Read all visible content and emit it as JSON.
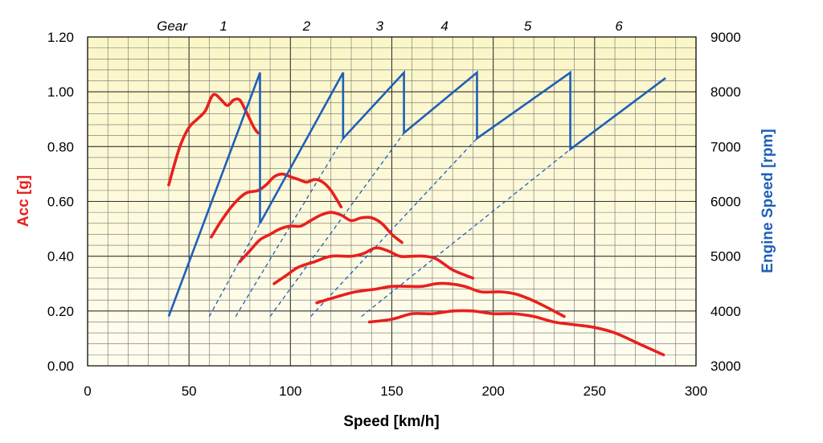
{
  "chart_data": {
    "type": "line",
    "xlabel": "Speed [km/h]",
    "ylabel_left": "Acc [g]",
    "ylabel_right": "Engine Speed [rpm]",
    "xlim": [
      0,
      300
    ],
    "ylim_left": [
      0,
      1.2
    ],
    "ylim_right": [
      3000,
      9000
    ],
    "x_ticks": [
      "0",
      "50",
      "100",
      "150",
      "200",
      "250",
      "300"
    ],
    "y_left_ticks": [
      "0.00",
      "0.20",
      "0.40",
      "0.60",
      "0.80",
      "1.00",
      "1.20"
    ],
    "y_right_ticks": [
      "3000",
      "4000",
      "5000",
      "6000",
      "7000",
      "8000",
      "9000"
    ],
    "grid": true,
    "colors": {
      "acceleration": "#e8201e",
      "engine_speed": "#1f5fb8",
      "background_top": "#fbf6c6",
      "background_bottom": "#fffdf0",
      "grid": "#6e6e6e",
      "left_axis_title": "#e8201e",
      "right_axis_title": "#1f5fb8"
    },
    "gear_header": {
      "title": "Gear",
      "labels": [
        {
          "text": "1",
          "x": 67
        },
        {
          "text": "2",
          "x": 108
        },
        {
          "text": "3",
          "x": 144
        },
        {
          "text": "4",
          "x": 176
        },
        {
          "text": "5",
          "x": 217
        },
        {
          "text": "6",
          "x": 262
        }
      ]
    },
    "acceleration_series": [
      {
        "gear": "1",
        "points": [
          [
            40,
            0.66
          ],
          [
            43,
            0.74
          ],
          [
            46,
            0.81
          ],
          [
            50,
            0.87
          ],
          [
            54,
            0.9
          ],
          [
            58,
            0.93
          ],
          [
            61,
            0.98
          ],
          [
            63,
            0.99
          ],
          [
            66,
            0.97
          ],
          [
            69,
            0.95
          ],
          [
            72,
            0.97
          ],
          [
            75,
            0.97
          ],
          [
            78,
            0.93
          ],
          [
            82,
            0.87
          ],
          [
            84,
            0.85
          ]
        ]
      },
      {
        "gear": "2",
        "points": [
          [
            61,
            0.47
          ],
          [
            66,
            0.53
          ],
          [
            72,
            0.59
          ],
          [
            78,
            0.63
          ],
          [
            84,
            0.64
          ],
          [
            88,
            0.66
          ],
          [
            92,
            0.69
          ],
          [
            96,
            0.7
          ],
          [
            100,
            0.69
          ],
          [
            104,
            0.68
          ],
          [
            108,
            0.67
          ],
          [
            112,
            0.68
          ],
          [
            116,
            0.67
          ],
          [
            120,
            0.64
          ],
          [
            125,
            0.58
          ]
        ]
      },
      {
        "gear": "3",
        "points": [
          [
            75,
            0.38
          ],
          [
            80,
            0.42
          ],
          [
            85,
            0.46
          ],
          [
            90,
            0.48
          ],
          [
            95,
            0.5
          ],
          [
            100,
            0.51
          ],
          [
            105,
            0.51
          ],
          [
            110,
            0.53
          ],
          [
            115,
            0.55
          ],
          [
            120,
            0.56
          ],
          [
            125,
            0.55
          ],
          [
            130,
            0.53
          ],
          [
            135,
            0.54
          ],
          [
            140,
            0.54
          ],
          [
            145,
            0.52
          ],
          [
            150,
            0.48
          ],
          [
            155,
            0.45
          ]
        ]
      },
      {
        "gear": "4",
        "points": [
          [
            92,
            0.3
          ],
          [
            98,
            0.33
          ],
          [
            104,
            0.36
          ],
          [
            112,
            0.38
          ],
          [
            120,
            0.4
          ],
          [
            130,
            0.4
          ],
          [
            136,
            0.41
          ],
          [
            142,
            0.43
          ],
          [
            148,
            0.42
          ],
          [
            154,
            0.4
          ],
          [
            160,
            0.4
          ],
          [
            166,
            0.4
          ],
          [
            172,
            0.39
          ],
          [
            180,
            0.35
          ],
          [
            190,
            0.32
          ]
        ]
      },
      {
        "gear": "5",
        "points": [
          [
            113,
            0.23
          ],
          [
            122,
            0.25
          ],
          [
            132,
            0.27
          ],
          [
            142,
            0.28
          ],
          [
            150,
            0.29
          ],
          [
            158,
            0.29
          ],
          [
            165,
            0.29
          ],
          [
            172,
            0.3
          ],
          [
            178,
            0.3
          ],
          [
            186,
            0.29
          ],
          [
            194,
            0.27
          ],
          [
            204,
            0.27
          ],
          [
            212,
            0.26
          ],
          [
            222,
            0.23
          ],
          [
            235,
            0.18
          ]
        ]
      },
      {
        "gear": "6",
        "points": [
          [
            139,
            0.16
          ],
          [
            150,
            0.17
          ],
          [
            160,
            0.19
          ],
          [
            170,
            0.19
          ],
          [
            180,
            0.2
          ],
          [
            190,
            0.2
          ],
          [
            200,
            0.19
          ],
          [
            210,
            0.19
          ],
          [
            220,
            0.18
          ],
          [
            230,
            0.16
          ],
          [
            240,
            0.15
          ],
          [
            250,
            0.14
          ],
          [
            260,
            0.12
          ],
          [
            272,
            0.08
          ],
          [
            284,
            0.04
          ]
        ]
      }
    ],
    "engine_speed_sawtooth": [
      [
        40,
        3900
      ],
      [
        85,
        8350
      ],
      [
        85,
        5600
      ],
      [
        126,
        8350
      ],
      [
        126,
        7150
      ],
      [
        156,
        8350
      ],
      [
        156,
        7250
      ],
      [
        192,
        8350
      ],
      [
        192,
        7150
      ],
      [
        238,
        8350
      ],
      [
        238,
        6950
      ],
      [
        285,
        8250
      ]
    ],
    "engine_speed_projections": [
      {
        "from": [
          60,
          3900
        ],
        "to": [
          85,
          5600
        ]
      },
      {
        "from": [
          73,
          3900
        ],
        "to": [
          126,
          7150
        ]
      },
      {
        "from": [
          90,
          3900
        ],
        "to": [
          156,
          7250
        ]
      },
      {
        "from": [
          110,
          3900
        ],
        "to": [
          192,
          7150
        ]
      },
      {
        "from": [
          135,
          3900
        ],
        "to": [
          238,
          6950
        ]
      }
    ]
  }
}
